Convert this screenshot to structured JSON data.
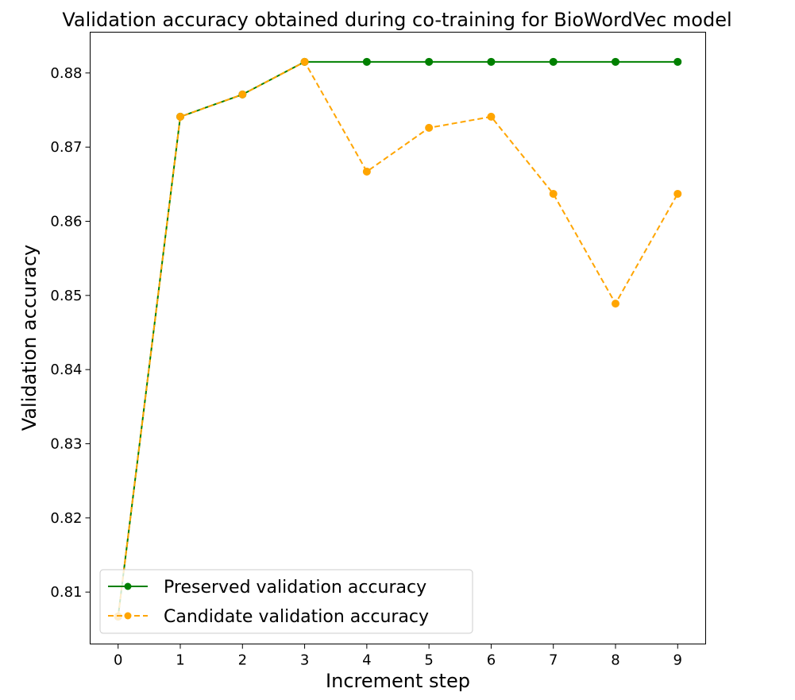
{
  "chart_data": {
    "type": "line",
    "title": "Validation accuracy obtained during co-training for BioWordVec model",
    "xlabel": "Increment step",
    "ylabel": "Validation accuracy",
    "x": [
      0,
      1,
      2,
      3,
      4,
      5,
      6,
      7,
      8,
      9
    ],
    "xlim": [
      -0.45,
      9.45
    ],
    "ylim": [
      0.803,
      0.8855
    ],
    "xticks": [
      "0",
      "1",
      "2",
      "3",
      "4",
      "5",
      "6",
      "7",
      "8",
      "9"
    ],
    "yticks": [
      "0.81",
      "0.82",
      "0.83",
      "0.84",
      "0.85",
      "0.86",
      "0.87",
      "0.88"
    ],
    "ytick_values": [
      0.81,
      0.82,
      0.83,
      0.84,
      0.85,
      0.86,
      0.87,
      0.88
    ],
    "grid": false,
    "legend_position": "lower-left",
    "series": [
      {
        "name": "Preserved validation accuracy",
        "values": [
          0.8067,
          0.8741,
          0.8771,
          0.8815,
          0.8815,
          0.8815,
          0.8815,
          0.8815,
          0.8815,
          0.8815
        ],
        "color": "#008000",
        "linestyle": "solid",
        "marker": "circle"
      },
      {
        "name": "Candidate validation accuracy",
        "values": [
          0.8067,
          0.8741,
          0.8771,
          0.8815,
          0.8667,
          0.8726,
          0.8741,
          0.8637,
          0.8489,
          0.8637
        ],
        "color": "#ffa500",
        "linestyle": "dashed",
        "marker": "circle"
      }
    ]
  }
}
